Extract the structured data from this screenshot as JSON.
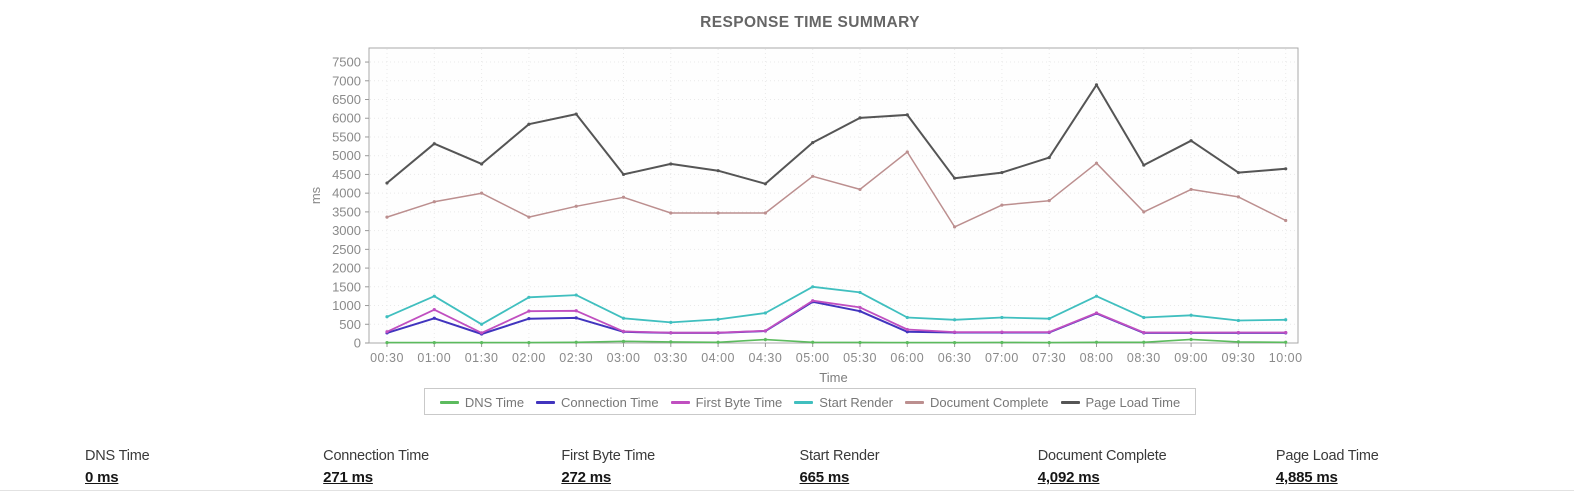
{
  "page": {
    "background": "#ffffff"
  },
  "chart_data": {
    "type": "line",
    "title": "RESPONSE TIME SUMMARY",
    "xlabel": "Time",
    "ylabel": "ms",
    "ylim": [
      0,
      7875
    ],
    "ytick_step": 500,
    "ytick_max": 7500,
    "grid": true,
    "legend_position": "bottom",
    "axis_text_color": "#8a8a8a",
    "grid_color": "#e9e9e9",
    "plot_border_color": "#a9a9a9",
    "categories": [
      "00:30",
      "01:00",
      "01:30",
      "02:00",
      "02:30",
      "03:00",
      "03:30",
      "04:00",
      "04:30",
      "05:00",
      "05:30",
      "06:00",
      "06:30",
      "07:00",
      "07:30",
      "08:00",
      "08:30",
      "09:00",
      "09:30",
      "10:00"
    ],
    "series": [
      {
        "name": "DNS Time",
        "color": "#5cbb5e",
        "values": [
          10,
          10,
          10,
          10,
          20,
          45,
          30,
          20,
          90,
          20,
          15,
          10,
          10,
          15,
          10,
          20,
          20,
          95,
          30,
          20
        ]
      },
      {
        "name": "Connection Time",
        "color": "#4134be",
        "values": [
          270,
          660,
          240,
          650,
          670,
          300,
          270,
          270,
          320,
          1100,
          850,
          300,
          280,
          280,
          280,
          790,
          270,
          270,
          270,
          270
        ]
      },
      {
        "name": "First Byte Time",
        "color": "#c04fc0",
        "values": [
          300,
          890,
          270,
          850,
          860,
          310,
          275,
          275,
          325,
          1130,
          950,
          360,
          290,
          290,
          290,
          800,
          280,
          280,
          280,
          280
        ]
      },
      {
        "name": "Start Render",
        "color": "#40bfbf",
        "values": [
          700,
          1250,
          500,
          1220,
          1280,
          660,
          550,
          630,
          800,
          1500,
          1350,
          680,
          620,
          680,
          650,
          1250,
          680,
          740,
          600,
          620
        ]
      },
      {
        "name": "Document Complete",
        "color": "#bc8f8f",
        "values": [
          3360,
          3770,
          4000,
          3360,
          3650,
          3890,
          3470,
          3470,
          3470,
          4450,
          4100,
          5100,
          3100,
          3680,
          3800,
          4800,
          3500,
          4100,
          3900,
          3270
        ]
      },
      {
        "name": "Page Load Time",
        "color": "#555555",
        "values": [
          4270,
          5320,
          4780,
          5840,
          6110,
          4500,
          4780,
          4600,
          4250,
          5350,
          6010,
          6090,
          4400,
          4550,
          4950,
          6890,
          4750,
          5400,
          4550,
          4650
        ]
      }
    ]
  },
  "summary": {
    "items": [
      {
        "label": "DNS Time",
        "value": "0 ms"
      },
      {
        "label": "Connection Time",
        "value": "271 ms"
      },
      {
        "label": "First Byte Time",
        "value": "272 ms"
      },
      {
        "label": "Start Render",
        "value": "665 ms"
      },
      {
        "label": "Document Complete",
        "value": "4,092 ms"
      },
      {
        "label": "Page Load Time",
        "value": "4,885 ms"
      }
    ]
  }
}
